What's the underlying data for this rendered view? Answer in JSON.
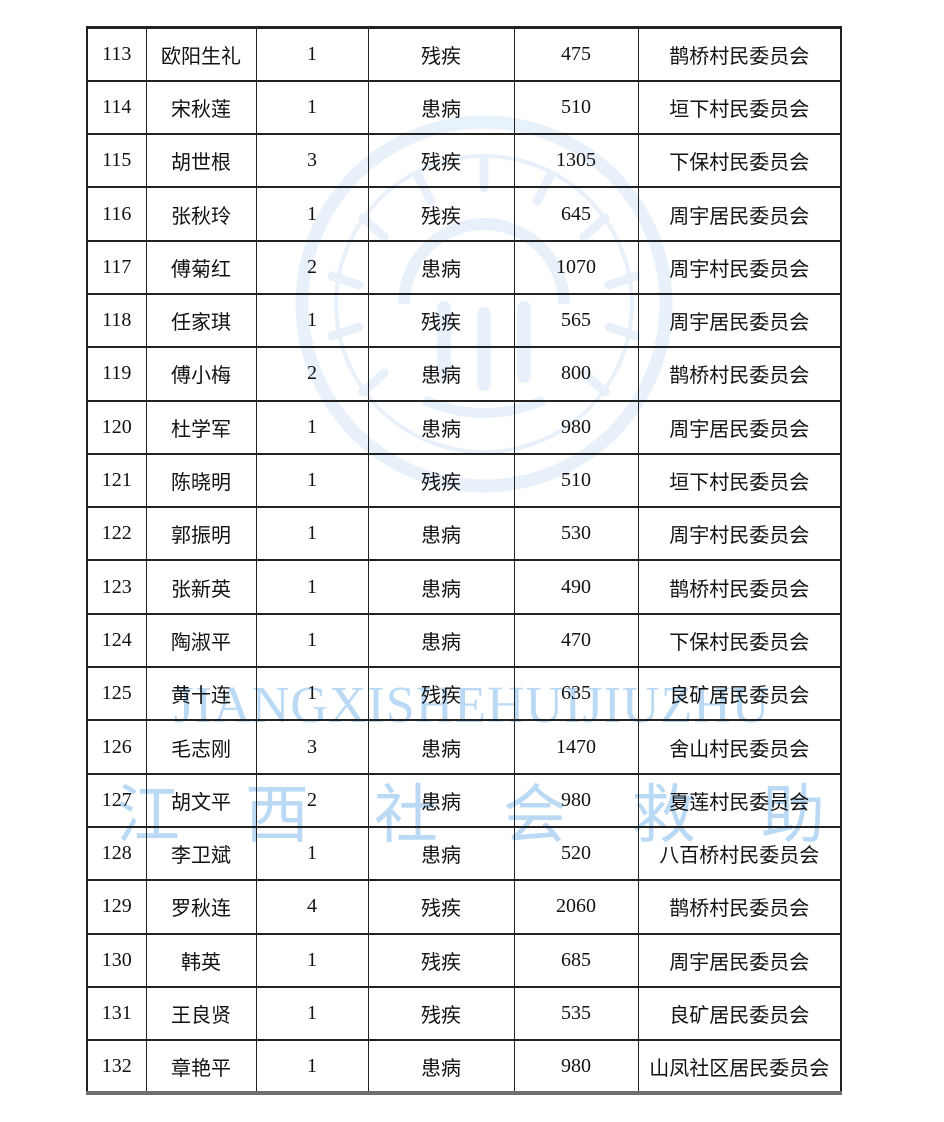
{
  "watermarks": {
    "latin_text": "JIANGXISHEHUIJIUZHU",
    "chinese_text": "江西社会救助",
    "color": "#b9d9f4",
    "seal_icon": "circular-seal-emblem",
    "seal_color": "#e7f1fa"
  },
  "colors": {
    "border": "#222222",
    "bottom_border": "#6e6e6e",
    "text": "#121212",
    "page_bg": "#ffffff"
  },
  "table": {
    "fields": [
      "no",
      "name",
      "people",
      "category",
      "amount",
      "committee"
    ],
    "rows": [
      {
        "no": "113",
        "name": "欧阳生礼",
        "people": "1",
        "category": "残疾",
        "amount": "475",
        "committee": "鹊桥村民委员会"
      },
      {
        "no": "114",
        "name": "宋秋莲",
        "people": "1",
        "category": "患病",
        "amount": "510",
        "committee": "垣下村民委员会"
      },
      {
        "no": "115",
        "name": "胡世根",
        "people": "3",
        "category": "残疾",
        "amount": "1305",
        "committee": "下保村民委员会"
      },
      {
        "no": "116",
        "name": "张秋玲",
        "people": "1",
        "category": "残疾",
        "amount": "645",
        "committee": "周宇居民委员会"
      },
      {
        "no": "117",
        "name": "傅菊红",
        "people": "2",
        "category": "患病",
        "amount": "1070",
        "committee": "周宇村民委员会"
      },
      {
        "no": "118",
        "name": "任家琪",
        "people": "1",
        "category": "残疾",
        "amount": "565",
        "committee": "周宇居民委员会"
      },
      {
        "no": "119",
        "name": "傅小梅",
        "people": "2",
        "category": "患病",
        "amount": "800",
        "committee": "鹊桥村民委员会"
      },
      {
        "no": "120",
        "name": "杜学军",
        "people": "1",
        "category": "患病",
        "amount": "980",
        "committee": "周宇居民委员会"
      },
      {
        "no": "121",
        "name": "陈晓明",
        "people": "1",
        "category": "残疾",
        "amount": "510",
        "committee": "垣下村民委员会"
      },
      {
        "no": "122",
        "name": "郭振明",
        "people": "1",
        "category": "患病",
        "amount": "530",
        "committee": "周宇村民委员会"
      },
      {
        "no": "123",
        "name": "张新英",
        "people": "1",
        "category": "患病",
        "amount": "490",
        "committee": "鹊桥村民委员会"
      },
      {
        "no": "124",
        "name": "陶淑平",
        "people": "1",
        "category": "患病",
        "amount": "470",
        "committee": "下保村民委员会"
      },
      {
        "no": "125",
        "name": "黄十连",
        "people": "1",
        "category": "残疾",
        "amount": "635",
        "committee": "良矿居民委员会"
      },
      {
        "no": "126",
        "name": "毛志刚",
        "people": "3",
        "category": "患病",
        "amount": "1470",
        "committee": "舍山村民委员会"
      },
      {
        "no": "127",
        "name": "胡文平",
        "people": "2",
        "category": "患病",
        "amount": "980",
        "committee": "夏莲村民委员会"
      },
      {
        "no": "128",
        "name": "李卫斌",
        "people": "1",
        "category": "患病",
        "amount": "520",
        "committee": "八百桥村民委员会"
      },
      {
        "no": "129",
        "name": "罗秋连",
        "people": "4",
        "category": "残疾",
        "amount": "2060",
        "committee": "鹊桥村民委员会"
      },
      {
        "no": "130",
        "name": "韩英",
        "people": "1",
        "category": "残疾",
        "amount": "685",
        "committee": "周宇居民委员会"
      },
      {
        "no": "131",
        "name": "王良贤",
        "people": "1",
        "category": "残疾",
        "amount": "535",
        "committee": "良矿居民委员会"
      },
      {
        "no": "132",
        "name": "章艳平",
        "people": "1",
        "category": "患病",
        "amount": "980",
        "committee": "山凤社区居民委员会"
      }
    ]
  }
}
